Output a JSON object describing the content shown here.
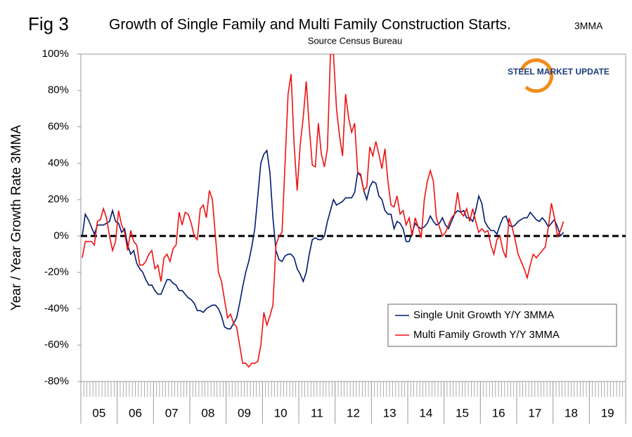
{
  "chart_data": {
    "type": "line",
    "figure_label": "Fig 3",
    "title": "Growth of Single Family and Multi Family Construction Starts.",
    "title_suffix": "3MMA",
    "subtitle": "Source Census Bureau",
    "logo": "STEEL MARKET UPDATE",
    "y_label": "Year / Year Growth Rate 3MMA",
    "year_labels": [
      "05",
      "06",
      "07",
      "08",
      "09",
      "10",
      "11",
      "12",
      "13",
      "14",
      "15",
      "16",
      "17",
      "18",
      "19"
    ],
    "ylim": [
      -80,
      100
    ],
    "yticks": [
      {
        "value": -80,
        "label": "-80%"
      },
      {
        "value": -60,
        "label": "-60%"
      },
      {
        "value": -40,
        "label": "-40%"
      },
      {
        "value": -20,
        "label": "-20%"
      },
      {
        "value": 0,
        "label": "0%"
      },
      {
        "value": 20,
        "label": "20%"
      },
      {
        "value": 40,
        "label": "40%"
      },
      {
        "value": 60,
        "label": "60%"
      },
      {
        "value": 80,
        "label": "80%"
      },
      {
        "value": 100,
        "label": "100%"
      }
    ],
    "zero_line": 0,
    "legend": "lower right",
    "series": [
      {
        "name": "Single Unit Growth Y/Y 3MMA",
        "color": "#001a70",
        "values": [
          0,
          12,
          9,
          5,
          1,
          6,
          6,
          6,
          7,
          8,
          14,
          8,
          7,
          2,
          4,
          -5,
          -10,
          -8,
          -15,
          -18,
          -20,
          -24,
          -27,
          -27,
          -30,
          -32,
          -32,
          -28,
          -24,
          -24,
          -26,
          -27,
          -30,
          -30,
          -32,
          -34,
          -35,
          -37,
          -41,
          -41,
          -42,
          -40,
          -39,
          -38,
          -38,
          -40,
          -44,
          -50,
          -51,
          -51,
          -48,
          -45,
          -37,
          -28,
          -20,
          -14,
          -6,
          4,
          22,
          40,
          45,
          47,
          35,
          10,
          -8,
          -13,
          -14,
          -11,
          -10,
          -10,
          -12,
          -18,
          -21,
          -25,
          -20,
          -10,
          -2,
          -1,
          -2,
          -2,
          0,
          8,
          14,
          20,
          17,
          18,
          19,
          21,
          21,
          21,
          24,
          35,
          33,
          25,
          20,
          27,
          30,
          29,
          22,
          20,
          14,
          12,
          12,
          4,
          8,
          7,
          4,
          -3,
          -3,
          2,
          7,
          5,
          4,
          5,
          7,
          11,
          8,
          6,
          7,
          10,
          6,
          4,
          8,
          12,
          14,
          13,
          14,
          10,
          10,
          8,
          14,
          22,
          18,
          8,
          5,
          3,
          3,
          1,
          6,
          10,
          11,
          6,
          5,
          6,
          8,
          9,
          10,
          10,
          13,
          11,
          9,
          8,
          10,
          8,
          5,
          7,
          9,
          5,
          0,
          2
        ]
      },
      {
        "name": "Multi Family Growth Y/Y 3MMA",
        "color": "#ee1111",
        "values": [
          -12,
          -3,
          -3,
          -3,
          -5,
          8,
          9,
          15,
          10,
          0,
          -8,
          -3,
          14,
          6,
          2,
          -8,
          3,
          -3,
          -5,
          -16,
          -16,
          -14,
          -10,
          -8,
          -18,
          -16,
          -25,
          -12,
          -10,
          -14,
          -7,
          -5,
          13,
          6,
          13,
          12,
          7,
          0,
          -2,
          15,
          17,
          10,
          25,
          20,
          0,
          -20,
          -25,
          -35,
          -45,
          -43,
          -48,
          -50,
          -60,
          -70,
          -70,
          -72,
          -70,
          -70,
          -69,
          -60,
          -42,
          -49,
          -44,
          -38,
          -5,
          0,
          2,
          40,
          78,
          89,
          50,
          25,
          50,
          65,
          85,
          60,
          39,
          38,
          62,
          45,
          38,
          48,
          100,
          100,
          70,
          55,
          44,
          78,
          65,
          57,
          62,
          35,
          34,
          25,
          27,
          49,
          44,
          52,
          45,
          37,
          48,
          30,
          17,
          16,
          22,
          12,
          14,
          6,
          10,
          0,
          10,
          5,
          -1,
          20,
          30,
          36,
          30,
          10,
          5,
          0,
          2,
          6,
          10,
          12,
          24,
          13,
          11,
          15,
          8,
          15,
          8,
          2,
          4,
          2,
          3,
          -5,
          -10,
          -2,
          0,
          -8,
          -12,
          10,
          5,
          -2,
          -10,
          -14,
          -18,
          -23,
          -16,
          -10,
          -12,
          -10,
          -8,
          -6,
          5,
          18,
          10,
          0,
          3,
          8
        ]
      }
    ]
  }
}
